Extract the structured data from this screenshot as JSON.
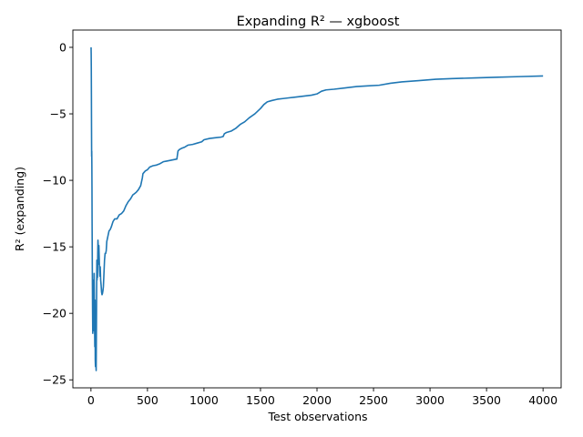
{
  "chart_data": {
    "type": "line",
    "title": "Expanding R² — xgboost",
    "xlabel": "Test observations",
    "ylabel": "R² (expanding)",
    "xlim": [
      -160,
      4160
    ],
    "ylim": [
      -25.6,
      1.3
    ],
    "xticks": [
      0,
      500,
      1000,
      1500,
      2000,
      2500,
      3000,
      3500,
      4000
    ],
    "yticks": [
      0,
      -5,
      -10,
      -15,
      -20,
      -25
    ],
    "grid": false,
    "line_color": "#1f77b4",
    "series": [
      {
        "name": "",
        "x": [
          1,
          2,
          3,
          4,
          5,
          6,
          7,
          8,
          9,
          10,
          12,
          14,
          16,
          18,
          20,
          22,
          24,
          26,
          28,
          30,
          32,
          34,
          36,
          38,
          40,
          42,
          44,
          46,
          48,
          50,
          52,
          54,
          56,
          58,
          60,
          62,
          65,
          68,
          70,
          73,
          76,
          79,
          82,
          86,
          90,
          94,
          98,
          102,
          106,
          110,
          115,
          120,
          125,
          130,
          135,
          140,
          150,
          160,
          170,
          180,
          195,
          210,
          230,
          250,
          270,
          290,
          310,
          330,
          350,
          370,
          385,
          400,
          420,
          440,
          455,
          460,
          470,
          480,
          500,
          520,
          550,
          580,
          610,
          640,
          670,
          700,
          730,
          760,
          770,
          780,
          800,
          830,
          860,
          900,
          940,
          980,
          1000,
          1050,
          1100,
          1150,
          1170,
          1180,
          1200,
          1240,
          1280,
          1320,
          1360,
          1400,
          1450,
          1500,
          1530,
          1560,
          1600,
          1650,
          1700,
          1750,
          1800,
          1850,
          1900,
          1950,
          2000,
          2040,
          2080,
          2150,
          2250,
          2350,
          2450,
          2550,
          2650,
          2750,
          2900,
          3050,
          3200,
          3400,
          3600,
          3800,
          4000
        ],
        "y": [
          0.0,
          -0.5,
          -1.5,
          -3.5,
          -6.0,
          -8.2,
          -7.8,
          -8.8,
          -10.5,
          -13.0,
          -16.5,
          -19.5,
          -21.5,
          -20.0,
          -17.5,
          -19.0,
          -21.3,
          -19.5,
          -17.0,
          -18.5,
          -21.0,
          -22.5,
          -19.0,
          -23.5,
          -24.0,
          -22.0,
          -23.8,
          -24.3,
          -21.5,
          -18.5,
          -16.0,
          -17.5,
          -16.2,
          -17.3,
          -15.5,
          -14.5,
          -15.2,
          -16.3,
          -14.9,
          -15.8,
          -16.7,
          -17.2,
          -16.5,
          -17.5,
          -17.9,
          -18.4,
          -18.6,
          -18.5,
          -18.3,
          -18.0,
          -17.0,
          -16.0,
          -15.5,
          -15.5,
          -15.3,
          -14.6,
          -14.2,
          -13.8,
          -13.7,
          -13.5,
          -13.1,
          -12.9,
          -12.9,
          -12.6,
          -12.5,
          -12.3,
          -11.9,
          -11.6,
          -11.4,
          -11.1,
          -11.0,
          -10.9,
          -10.7,
          -10.4,
          -9.8,
          -9.5,
          -9.4,
          -9.3,
          -9.2,
          -9.0,
          -8.9,
          -8.85,
          -8.75,
          -8.6,
          -8.55,
          -8.5,
          -8.45,
          -8.4,
          -7.8,
          -7.7,
          -7.6,
          -7.5,
          -7.35,
          -7.3,
          -7.2,
          -7.1,
          -6.95,
          -6.85,
          -6.8,
          -6.75,
          -6.7,
          -6.5,
          -6.4,
          -6.3,
          -6.1,
          -5.8,
          -5.6,
          -5.3,
          -5.0,
          -4.6,
          -4.3,
          -4.1,
          -4.0,
          -3.9,
          -3.85,
          -3.8,
          -3.75,
          -3.7,
          -3.65,
          -3.6,
          -3.5,
          -3.3,
          -3.2,
          -3.15,
          -3.05,
          -2.95,
          -2.9,
          -2.85,
          -2.7,
          -2.6,
          -2.5,
          -2.4,
          -2.35,
          -2.3,
          -2.25,
          -2.2,
          -2.15
        ]
      }
    ]
  }
}
